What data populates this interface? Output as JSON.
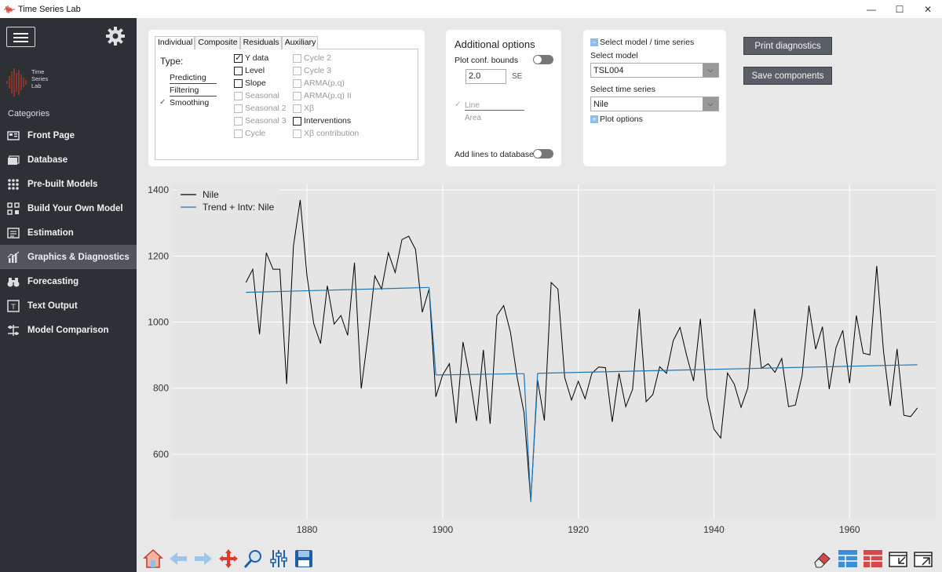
{
  "window": {
    "title": "Time Series Lab",
    "minimize_icon": "minimize-icon",
    "maximize_icon": "maximize-icon",
    "close_icon": "close-icon"
  },
  "sidebar": {
    "logo_text": [
      "Time",
      "Series",
      "Lab"
    ],
    "categories_label": "Categories",
    "items": [
      {
        "label": "Front Page",
        "icon": "front-page-icon",
        "active": false
      },
      {
        "label": "Database",
        "icon": "database-icon",
        "active": false
      },
      {
        "label": "Pre-built Models",
        "icon": "grid-icon",
        "active": false
      },
      {
        "label": "Build Your Own Model",
        "icon": "build-model-icon",
        "active": false
      },
      {
        "label": "Estimation",
        "icon": "estimation-icon",
        "active": false
      },
      {
        "label": "Graphics & Diagnostics",
        "icon": "chart-icon",
        "active": true
      },
      {
        "label": "Forecasting",
        "icon": "binoculars-icon",
        "active": false
      },
      {
        "label": "Text Output",
        "icon": "text-output-icon",
        "active": false
      },
      {
        "label": "Model Comparison",
        "icon": "compare-icon",
        "active": false
      }
    ]
  },
  "series_panel": {
    "tabs": [
      "Individual",
      "Composite",
      "Residuals",
      "Auxiliary"
    ],
    "active_tab": "Individual",
    "type_label": "Type:",
    "types": [
      "Predicting",
      "Filtering",
      "Smoothing"
    ],
    "selected_type": "Smoothing",
    "col1": [
      {
        "label": "Y data",
        "checked": true,
        "enabled": true
      },
      {
        "label": "Level",
        "checked": false,
        "enabled": true
      },
      {
        "label": "Slope",
        "checked": false,
        "enabled": true
      },
      {
        "label": "Seasonal",
        "checked": false,
        "enabled": false
      },
      {
        "label": "Seasonal 2",
        "checked": false,
        "enabled": false
      },
      {
        "label": "Seasonal 3",
        "checked": false,
        "enabled": false
      },
      {
        "label": "Cycle",
        "checked": false,
        "enabled": false
      }
    ],
    "col2": [
      {
        "label": "Cycle 2",
        "checked": false,
        "enabled": false
      },
      {
        "label": "Cycle 3",
        "checked": false,
        "enabled": false
      },
      {
        "label": "ARMA(p,q)",
        "checked": false,
        "enabled": false
      },
      {
        "label": "ARMA(p,q) II",
        "checked": false,
        "enabled": false
      },
      {
        "label": "Xβ",
        "checked": false,
        "enabled": false
      },
      {
        "label": "Interventions",
        "checked": false,
        "enabled": true
      },
      {
        "label": "Xβ contribution",
        "checked": false,
        "enabled": false
      }
    ]
  },
  "options_panel": {
    "title": "Additional options",
    "plot_conf_label": "Plot conf. bounds",
    "conf_value": "2.0",
    "se_label": "SE",
    "line_label": "Line",
    "area_label": "Area",
    "add_lines_label": "Add lines to database"
  },
  "model_panel": {
    "select_header": "Select model / time series",
    "select_model_label": "Select model",
    "model_value": "TSL004",
    "select_series_label": "Select time series",
    "series_value": "Nile",
    "plot_options_label": "Plot options"
  },
  "buttons": {
    "print_diagnostics": "Print diagnostics",
    "save_components": "Save components"
  },
  "chart_data": {
    "type": "line",
    "x_ticks": [
      "1880",
      "1900",
      "1920",
      "1940",
      "1960"
    ],
    "y_ticks": [
      "600",
      "800",
      "1000",
      "1200",
      "1400"
    ],
    "xlim": [
      1860.2,
      1972.7
    ],
    "ylim": [
      405,
      1417
    ],
    "grid": true,
    "legend_position": "top-left",
    "background": "#e5e5e5",
    "series": [
      {
        "name": "Nile",
        "color": "#000000",
        "x_start": 1871,
        "values": [
          1120,
          1160,
          963,
          1210,
          1160,
          1160,
          813,
          1230,
          1370,
          1140,
          995,
          935,
          1110,
          994,
          1020,
          960,
          1180,
          799,
          958,
          1140,
          1100,
          1210,
          1150,
          1250,
          1260,
          1220,
          1030,
          1100,
          774,
          840,
          874,
          694,
          940,
          833,
          701,
          916,
          692,
          1020,
          1050,
          969,
          831,
          726,
          456,
          824,
          702,
          1120,
          1100,
          832,
          764,
          821,
          768,
          845,
          864,
          862,
          698,
          845,
          744,
          796,
          1040,
          759,
          781,
          865,
          845,
          944,
          984,
          897,
          822,
          1010,
          771,
          676,
          649,
          846,
          812,
          742,
          801,
          1040,
          860,
          874,
          848,
          890,
          744,
          749,
          838,
          1050,
          918,
          986,
          797,
          923,
          975,
          815,
          1020,
          906,
          901,
          1170,
          912,
          746,
          919,
          718,
          714,
          740
        ]
      },
      {
        "name": "Trend + Intv: Nile",
        "color": "#1f77b4",
        "segments": [
          {
            "x": [
              1871,
              1898
            ],
            "y": [
              1090,
              1105
            ]
          },
          {
            "x": [
              1898,
              1899
            ],
            "y": [
              1105,
              840
            ]
          },
          {
            "x": [
              1899,
              1912
            ],
            "y": [
              840,
              844
            ]
          },
          {
            "x": [
              1912,
              1913
            ],
            "y": [
              844,
              456
            ]
          },
          {
            "x": [
              1913,
              1914
            ],
            "y": [
              456,
              845
            ]
          },
          {
            "x": [
              1914,
              1970
            ],
            "y": [
              845,
              871
            ]
          }
        ]
      }
    ]
  },
  "toolbar": {
    "left": [
      "home-icon",
      "back-arrow-icon",
      "forward-arrow-icon",
      "pan-icon",
      "zoom-icon",
      "configure-icon",
      "save-icon"
    ],
    "right": [
      "eraser-icon",
      "layout-blue-icon",
      "layout-red-icon",
      "window-collapse-icon",
      "window-expand-icon"
    ]
  }
}
